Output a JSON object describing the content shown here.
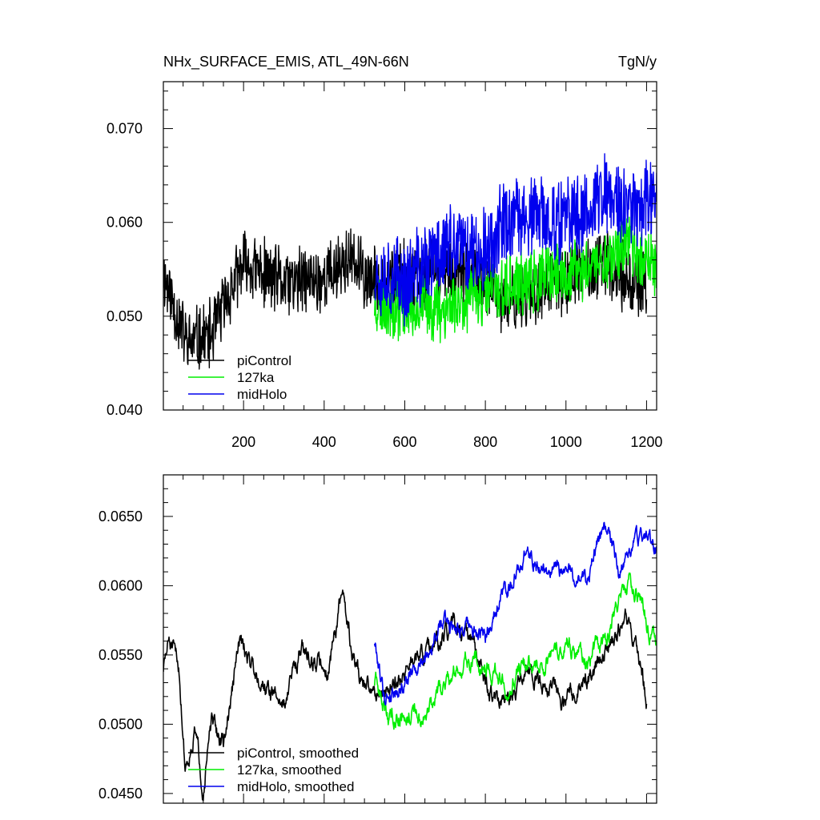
{
  "figure": {
    "title": "NHx_SURFACE_EMIS, ATL_49N-66N",
    "units": "TgN/y"
  },
  "chart_data": [
    {
      "type": "line",
      "panel": "raw",
      "title": "NHx_SURFACE_EMIS, ATL_49N-66N",
      "units": "TgN/y",
      "xlim": [
        1,
        1225
      ],
      "ylim": [
        0.04,
        0.075
      ],
      "x_ticks": [
        200,
        400,
        600,
        800,
        1000,
        1200
      ],
      "y_ticks": [
        0.04,
        0.05,
        0.06,
        0.07
      ],
      "y_tick_labels": [
        "0.040",
        "0.050",
        "0.060",
        "0.070"
      ],
      "x_tick_labels": [
        "200",
        "400",
        "600",
        "800",
        "1000",
        "1200"
      ],
      "legend": "bottom-left",
      "series": [
        {
          "name": "piControl",
          "color": "#000000",
          "x_start": 1,
          "x_end": 1200,
          "mean_points": [
            [
              1,
              0.0545
            ],
            [
              60,
              0.047
            ],
            [
              120,
              0.048
            ],
            [
              160,
              0.052
            ],
            [
              200,
              0.0555
            ],
            [
              300,
              0.0535
            ],
            [
              400,
              0.054
            ],
            [
              460,
              0.056
            ],
            [
              520,
              0.0535
            ],
            [
              600,
              0.0545
            ],
            [
              700,
              0.055
            ],
            [
              800,
              0.0535
            ],
            [
              850,
              0.051
            ],
            [
              900,
              0.0525
            ],
            [
              1000,
              0.054
            ],
            [
              1100,
              0.0555
            ],
            [
              1200,
              0.053
            ]
          ],
          "amplitude": 0.0042,
          "seed": 11
        },
        {
          "name": "127ka",
          "color": "#00ee00",
          "x_start": 525,
          "x_end": 1225,
          "mean_points": [
            [
              525,
              0.0515
            ],
            [
              600,
              0.051
            ],
            [
              700,
              0.051
            ],
            [
              800,
              0.0525
            ],
            [
              900,
              0.0535
            ],
            [
              1000,
              0.0545
            ],
            [
              1100,
              0.056
            ],
            [
              1150,
              0.058
            ],
            [
              1225,
              0.0555
            ]
          ],
          "amplitude": 0.004,
          "seed": 23
        },
        {
          "name": "midHolo",
          "color": "#0000ee",
          "x_start": 525,
          "x_end": 1225,
          "mean_points": [
            [
              525,
              0.055
            ],
            [
              600,
              0.0535
            ],
            [
              700,
              0.0575
            ],
            [
              800,
              0.057
            ],
            [
              850,
              0.06
            ],
            [
              900,
              0.0605
            ],
            [
              1000,
              0.06
            ],
            [
              1100,
              0.063
            ],
            [
              1150,
              0.0615
            ],
            [
              1225,
              0.063
            ]
          ],
          "amplitude": 0.0052,
          "seed": 37
        }
      ]
    },
    {
      "type": "line",
      "panel": "smoothed",
      "xlim": [
        1,
        1225
      ],
      "ylim": [
        0.0443,
        0.068
      ],
      "x_ticks": [
        200,
        400,
        600,
        800,
        1000,
        1200
      ],
      "y_ticks": [
        0.045,
        0.05,
        0.055,
        0.06,
        0.065
      ],
      "y_tick_labels": [
        "0.0450",
        "0.0500",
        "0.0550",
        "0.0600",
        "0.0650"
      ],
      "legend": "bottom-left",
      "series": [
        {
          "name": "piControl, smoothed",
          "color": "#000000",
          "x_start": 1,
          "x_end": 1200,
          "mean_points": [
            [
              1,
              0.054
            ],
            [
              15,
              0.056
            ],
            [
              40,
              0.054
            ],
            [
              55,
              0.047
            ],
            [
              80,
              0.0495
            ],
            [
              100,
              0.0455
            ],
            [
              120,
              0.05
            ],
            [
              150,
              0.0485
            ],
            [
              170,
              0.052
            ],
            [
              190,
              0.056
            ],
            [
              220,
              0.0545
            ],
            [
              260,
              0.0525
            ],
            [
              300,
              0.0515
            ],
            [
              340,
              0.0555
            ],
            [
              380,
              0.0545
            ],
            [
              410,
              0.054
            ],
            [
              445,
              0.0595
            ],
            [
              470,
              0.055
            ],
            [
              500,
              0.0525
            ],
            [
              560,
              0.0525
            ],
            [
              620,
              0.0545
            ],
            [
              680,
              0.0555
            ],
            [
              720,
              0.057
            ],
            [
              760,
              0.056
            ],
            [
              820,
              0.052
            ],
            [
              860,
              0.051
            ],
            [
              900,
              0.054
            ],
            [
              960,
              0.053
            ],
            [
              1000,
              0.0515
            ],
            [
              1060,
              0.0535
            ],
            [
              1100,
              0.0555
            ],
            [
              1150,
              0.0575
            ],
            [
              1185,
              0.0545
            ],
            [
              1200,
              0.0515
            ]
          ],
          "amplitude": 0.0012,
          "seed": 51
        },
        {
          "name": "127ka, smoothed",
          "color": "#00ee00",
          "x_start": 525,
          "x_end": 1225,
          "mean_points": [
            [
              525,
              0.053
            ],
            [
              560,
              0.0505
            ],
            [
              600,
              0.051
            ],
            [
              650,
              0.0505
            ],
            [
              700,
              0.053
            ],
            [
              750,
              0.0545
            ],
            [
              800,
              0.0545
            ],
            [
              850,
              0.053
            ],
            [
              900,
              0.0545
            ],
            [
              950,
              0.0545
            ],
            [
              1000,
              0.056
            ],
            [
              1050,
              0.055
            ],
            [
              1100,
              0.056
            ],
            [
              1130,
              0.059
            ],
            [
              1160,
              0.0605
            ],
            [
              1190,
              0.0585
            ],
            [
              1225,
              0.0555
            ]
          ],
          "amplitude": 0.0012,
          "seed": 63
        },
        {
          "name": "midHolo, smoothed",
          "color": "#0000ee",
          "x_start": 525,
          "x_end": 1225,
          "mean_points": [
            [
              525,
              0.056
            ],
            [
              550,
              0.052
            ],
            [
              600,
              0.053
            ],
            [
              650,
              0.055
            ],
            [
              700,
              0.0575
            ],
            [
              750,
              0.057
            ],
            [
              800,
              0.056
            ],
            [
              830,
              0.059
            ],
            [
              880,
              0.061
            ],
            [
              900,
              0.0625
            ],
            [
              950,
              0.061
            ],
            [
              1000,
              0.061
            ],
            [
              1050,
              0.0605
            ],
            [
              1100,
              0.0645
            ],
            [
              1130,
              0.061
            ],
            [
              1170,
              0.063
            ],
            [
              1200,
              0.064
            ],
            [
              1225,
              0.0625
            ]
          ],
          "amplitude": 0.0011,
          "seed": 79
        }
      ]
    }
  ]
}
